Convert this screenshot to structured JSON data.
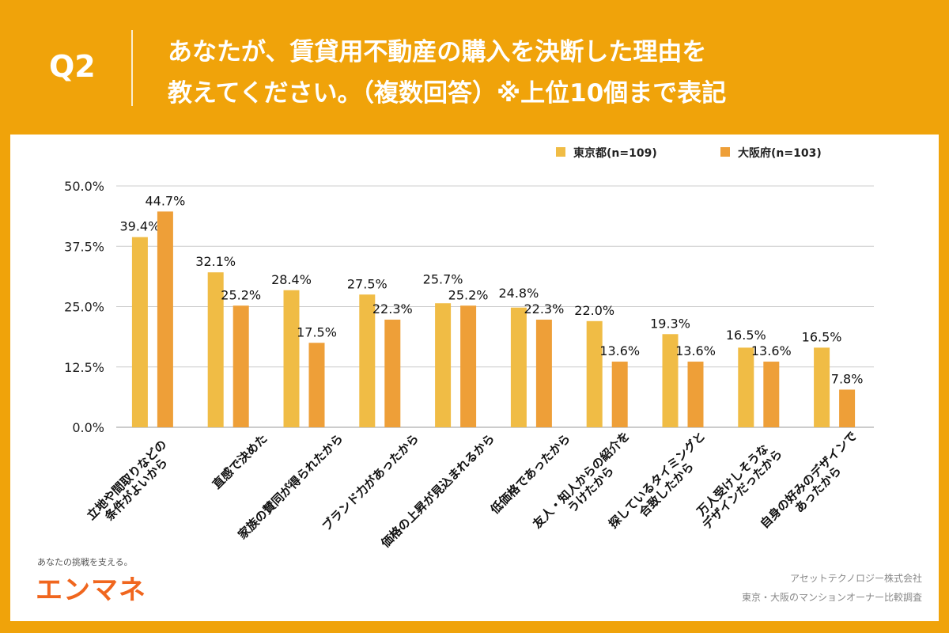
{
  "header": {
    "question_no": "Q2",
    "title_line1": "あなたが、賃貸用不動産の購入を決断した理由を",
    "title_line2": "教えてください。（複数回答）※上位10個まで表記"
  },
  "chart_data": {
    "type": "bar",
    "categories": [
      [
        "立地や間取りなどの",
        "条件がよいから"
      ],
      [
        "直感で決めた"
      ],
      [
        "家族の賛同が得られたから"
      ],
      [
        "ブランド力があったから"
      ],
      [
        "価格の上昇が見込まれるから"
      ],
      [
        "低価格であったから"
      ],
      [
        "友人・知人からの紹介を",
        "うけたから"
      ],
      [
        "探しているタイミングと",
        "合致したから"
      ],
      [
        "万人受けしそうな",
        "デザインだったから"
      ],
      [
        "自身の好みのデザインで",
        "あったから"
      ]
    ],
    "series": [
      {
        "name": "東京都(n=109)",
        "color": "#F0BC45",
        "values": [
          39.4,
          32.1,
          28.4,
          27.5,
          25.7,
          24.8,
          22.0,
          19.3,
          16.5,
          16.5
        ]
      },
      {
        "name": "大阪府(n=103)",
        "color": "#EE9F38",
        "values": [
          44.7,
          25.2,
          17.5,
          22.3,
          25.2,
          22.3,
          13.6,
          13.6,
          13.6,
          7.8
        ]
      }
    ],
    "ylim": [
      0,
      50
    ],
    "yticks": [
      "0.0%",
      "12.5%",
      "25.0%",
      "37.5%",
      "50.0%"
    ],
    "grid": true,
    "legend": "top-right"
  },
  "footer": {
    "tagline": "あなたの挑戦を支える。",
    "logo": "エンマネ",
    "company": "アセットテクノロジー株式会社",
    "survey": "東京・大阪のマンションオーナー比較調査"
  }
}
